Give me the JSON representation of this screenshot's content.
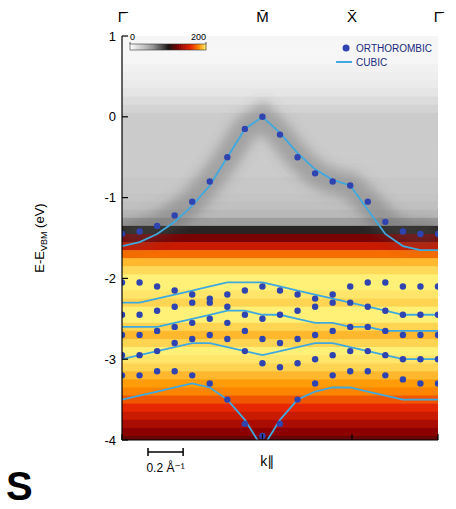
{
  "chart_data": {
    "type": "band_structure",
    "xlim": [
      0,
      1.8
    ],
    "xticks": [
      {
        "value": 0,
        "label": "Γ̄"
      },
      {
        "value": 0.8,
        "label": "M̄"
      },
      {
        "value": 1.31,
        "label": "X̄"
      },
      {
        "value": 1.8,
        "label": "Γ̄"
      }
    ],
    "xlabel": "k∥",
    "scale_bar": {
      "value": 0.2,
      "label": "0.2 Å⁻¹"
    },
    "ylabel": {
      "text": "E-E",
      "sub": "VBM",
      "tail": " (eV)"
    },
    "ylim": [
      -4,
      1
    ],
    "yticks": [
      -4,
      -3,
      -2,
      -1,
      0,
      1
    ],
    "legend": "upper right",
    "grid": false,
    "x": [
      0,
      0.1,
      0.2,
      0.3,
      0.4,
      0.5,
      0.6,
      0.7,
      0.8,
      0.9,
      1.0,
      1.1,
      1.2,
      1.3,
      1.4,
      1.5,
      1.6,
      1.7,
      1.8
    ],
    "series": [
      {
        "name": "ORTHOROMBIC",
        "color": "#2f44b0",
        "marker": "circle",
        "line_style": "none",
        "bands": [
          [
            -1.45,
            -1.42,
            -1.35,
            -1.22,
            -1.05,
            -0.8,
            -0.5,
            -0.15,
            0.0,
            -0.22,
            -0.5,
            -0.7,
            -0.8,
            -0.85,
            -1.05,
            -1.3,
            -1.42,
            -1.45,
            -1.45
          ],
          [
            -2.05,
            -2.05,
            -2.1,
            -2.15,
            -2.2,
            -2.25,
            -2.2,
            -2.15,
            -2.1,
            -2.15,
            -2.2,
            -2.25,
            -2.2,
            -2.1,
            -2.05,
            -2.05,
            -2.1,
            -2.1,
            -2.1
          ],
          [
            -2.45,
            -2.45,
            -2.4,
            -2.35,
            -2.3,
            -2.3,
            -2.35,
            -2.45,
            -2.5,
            -2.45,
            -2.4,
            -2.35,
            -2.3,
            -2.3,
            -2.35,
            -2.4,
            -2.45,
            -2.45,
            -2.45
          ],
          [
            -2.7,
            -2.7,
            -2.65,
            -2.6,
            -2.55,
            -2.5,
            -2.55,
            -2.65,
            -2.75,
            -2.8,
            -2.75,
            -2.7,
            -2.65,
            -2.6,
            -2.6,
            -2.65,
            -2.7,
            -2.7,
            -2.7
          ],
          [
            -2.95,
            -2.95,
            -2.9,
            -2.8,
            -2.75,
            -2.7,
            -2.75,
            -2.9,
            -3.05,
            -3.1,
            -3.05,
            -3.0,
            -2.95,
            -2.9,
            -2.9,
            -2.95,
            -3.0,
            -3.0,
            -3.0
          ],
          [
            -3.2,
            -3.2,
            -3.15,
            -3.15,
            -3.2,
            -3.3,
            -3.5,
            -3.8,
            -3.95,
            -3.8,
            -3.5,
            -3.3,
            -3.2,
            -3.15,
            -3.15,
            -3.2,
            -3.25,
            -3.3,
            -3.3
          ]
        ]
      },
      {
        "name": "CUBIC",
        "color": "#3fa9df",
        "marker": "none",
        "line_style": "solid",
        "bands": [
          [
            -1.6,
            -1.55,
            -1.45,
            -1.3,
            -1.1,
            -0.85,
            -0.5,
            -0.15,
            0.0,
            -0.2,
            -0.45,
            -0.65,
            -0.78,
            -0.85,
            -1.15,
            -1.45,
            -1.6,
            -1.65,
            -1.65
          ],
          [
            -2.3,
            -2.3,
            -2.25,
            -2.2,
            -2.15,
            -2.1,
            -2.05,
            -2.05,
            -2.05,
            -2.1,
            -2.15,
            -2.2,
            -2.25,
            -2.3,
            -2.35,
            -2.4,
            -2.45,
            -2.45,
            -2.45
          ],
          [
            -2.6,
            -2.6,
            -2.6,
            -2.55,
            -2.5,
            -2.45,
            -2.4,
            -2.4,
            -2.45,
            -2.45,
            -2.5,
            -2.55,
            -2.55,
            -2.6,
            -2.6,
            -2.65,
            -2.65,
            -2.65,
            -2.65
          ],
          [
            -3.0,
            -2.95,
            -2.9,
            -2.85,
            -2.8,
            -2.8,
            -2.85,
            -2.9,
            -2.95,
            -2.9,
            -2.85,
            -2.8,
            -2.8,
            -2.85,
            -2.9,
            -2.95,
            -3.0,
            -3.0,
            -3.0
          ],
          [
            -3.5,
            -3.45,
            -3.4,
            -3.35,
            -3.3,
            -3.35,
            -3.5,
            -3.75,
            -4.1,
            -3.75,
            -3.5,
            -3.4,
            -3.35,
            -3.35,
            -3.4,
            -3.45,
            -3.5,
            -3.5,
            -3.5
          ]
        ]
      }
    ],
    "intensity": {
      "energies": [
        1.0,
        0.9,
        0.8,
        0.7,
        0.6,
        0.5,
        0.4,
        0.3,
        0.2,
        0.1,
        0.0,
        -0.1,
        -0.2,
        -0.3,
        -0.4,
        -0.5,
        -0.6,
        -0.7,
        -0.8,
        -0.9,
        -1.0,
        -1.1,
        -1.2,
        -1.3,
        -1.4,
        -1.5,
        -1.6,
        -1.7,
        -1.8,
        -1.9,
        -2.0,
        -2.1,
        -2.2,
        -2.3,
        -2.4,
        -2.5,
        -2.6,
        -2.7,
        -2.8,
        -2.9,
        -3.0,
        -3.1,
        -3.2,
        -3.3,
        -3.4,
        -3.5,
        -3.6,
        -3.7,
        -3.8,
        -3.9,
        -4.0
      ],
      "values": [
        5,
        5,
        5,
        5,
        8,
        10,
        12,
        15,
        20,
        25,
        30,
        30,
        30,
        30,
        30,
        30,
        30,
        30,
        32,
        32,
        34,
        36,
        40,
        55,
        95,
        125,
        150,
        175,
        190,
        196,
        200,
        200,
        198,
        195,
        200,
        200,
        195,
        190,
        195,
        200,
        198,
        195,
        190,
        185,
        180,
        170,
        160,
        150,
        140,
        130,
        120
      ]
    },
    "colorbar": {
      "range": [
        0,
        200
      ],
      "ticks": [
        0,
        200
      ]
    },
    "annotations": [
      "S"
    ]
  }
}
